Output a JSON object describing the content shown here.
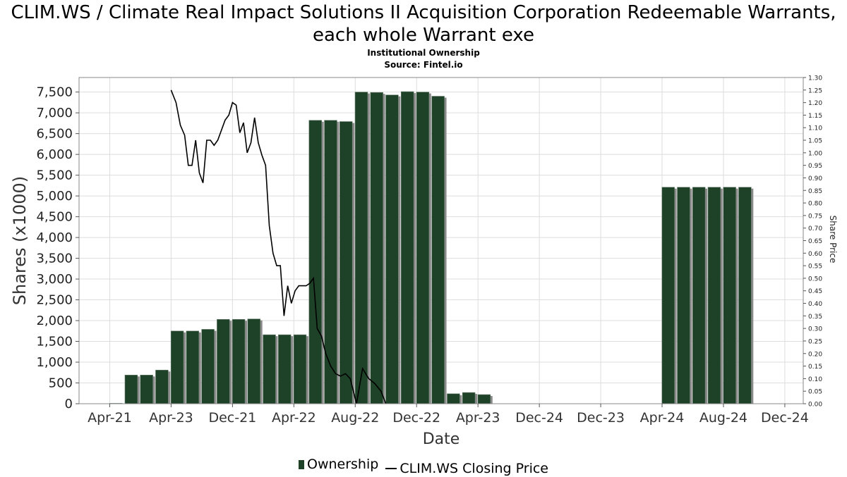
{
  "header": {
    "title": "CLIM.WS / Climate Real Impact Solutions II Acquisition Corporation Redeemable Warrants, each whole Warrant exe",
    "subtitle": "Institutional Ownership",
    "source": "Source: Fintel.io"
  },
  "legend": {
    "ownership_label": "Ownership",
    "price_label": "CLIM.WS Closing Price"
  },
  "colors": {
    "bar": "#1d4228",
    "bar_shadow": "#8a8a8a",
    "line": "#000000",
    "grid": "#dddddd"
  },
  "chart_data": {
    "type": "bar",
    "title": "CLIM.WS / Climate Real Impact Solutions II Acquisition Corporation Redeemable Warrants, each whole Warrant exe",
    "xlabel": "Date",
    "ylabel": "Shares (x1000)",
    "y2label": "Share Price",
    "ylim": [
      0,
      7850
    ],
    "y2lim": [
      0,
      1.3
    ],
    "grid": true,
    "legend_position": "bottom",
    "x_tick_labels": [
      "Apr-21",
      "Apr-23",
      "Dec-21",
      "Apr-22",
      "Aug-22",
      "Dec-22",
      "Apr-23",
      "Dec-24",
      "Dec-23",
      "Apr-24",
      "Aug-24",
      "Dec-24"
    ],
    "y_ticks": [
      0,
      500,
      1000,
      1500,
      2000,
      2500,
      3000,
      3500,
      4000,
      4500,
      5000,
      5500,
      6000,
      6500,
      7000,
      7500
    ],
    "y_tick_labels": [
      "0",
      "500",
      "1,000",
      "1,500",
      "2,000",
      "2,500",
      "3,000",
      "3,500",
      "4,000",
      "4,500",
      "5,000",
      "5,500",
      "6,000",
      "6,500",
      "7,000",
      "7,500"
    ],
    "y2_tick_labels": [
      "0.00",
      "0.05",
      "0.10",
      "0.15",
      "0.20",
      "0.25",
      "0.30",
      "0.35",
      "0.40",
      "0.45",
      "0.50",
      "0.55",
      "0.60",
      "0.65",
      "0.70",
      "0.75",
      "0.80",
      "0.85",
      "0.90",
      "0.95",
      "1.00",
      "1.05",
      "1.10",
      "1.15",
      "1.20",
      "1.25",
      "1.30"
    ],
    "series": [
      {
        "name": "Ownership",
        "kind": "bar",
        "x": [
          0.6,
          0.85,
          1.1,
          1.35,
          1.6,
          1.85,
          2.1,
          2.35,
          2.6,
          2.85,
          3.1,
          3.35,
          3.6,
          3.85,
          4.1,
          4.35,
          4.6,
          4.85,
          5.1,
          5.35,
          5.6,
          5.85,
          6.1,
          6.35,
          6.6,
          9.6,
          9.85,
          10.1,
          10.35,
          10.6,
          10.85
        ],
        "values": [
          10,
          690,
          690,
          810,
          1750,
          1750,
          1790,
          2030,
          2030,
          2040,
          1660,
          1660,
          1660,
          6820,
          6820,
          6790,
          7500,
          7490,
          7430,
          7510,
          7500,
          7400,
          240,
          270,
          220,
          5210,
          5210,
          5210,
          5210,
          5210,
          5210
        ]
      },
      {
        "name": "CLIM.WS Closing Price",
        "kind": "line",
        "axis": "right",
        "x": [
          1.5,
          1.58,
          1.65,
          1.72,
          1.78,
          1.84,
          1.9,
          1.96,
          2.02,
          2.08,
          2.14,
          2.2,
          2.26,
          2.32,
          2.38,
          2.44,
          2.5,
          2.56,
          2.62,
          2.68,
          2.74,
          2.8,
          2.86,
          2.92,
          2.98,
          3.04,
          3.1,
          3.16,
          3.22,
          3.28,
          3.34,
          3.4,
          3.46,
          3.52,
          3.58,
          3.64,
          3.7,
          3.76,
          3.82,
          3.88,
          3.95,
          4.02,
          4.1,
          4.18,
          4.26,
          4.34,
          4.42,
          4.52,
          4.62,
          4.72,
          4.82,
          4.92,
          5.0
        ],
        "values": [
          1.25,
          1.2,
          1.11,
          1.07,
          0.95,
          0.95,
          1.05,
          0.92,
          0.88,
          1.05,
          1.05,
          1.03,
          1.05,
          1.09,
          1.13,
          1.15,
          1.2,
          1.19,
          1.08,
          1.12,
          1.0,
          1.04,
          1.14,
          1.04,
          0.99,
          0.95,
          0.71,
          0.6,
          0.55,
          0.55,
          0.35,
          0.47,
          0.4,
          0.45,
          0.47,
          0.47,
          0.47,
          0.48,
          0.5,
          0.3,
          0.27,
          0.2,
          0.15,
          0.12,
          0.11,
          0.12,
          0.1,
          0.0,
          0.14,
          0.1,
          0.08,
          0.05,
          0.0
        ]
      }
    ]
  }
}
